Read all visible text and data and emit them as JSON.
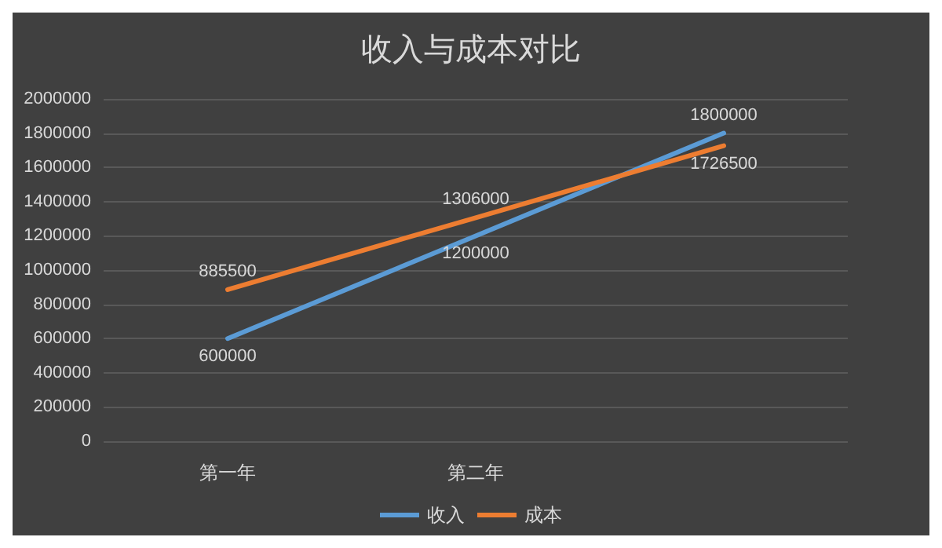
{
  "chart_data": {
    "type": "line",
    "title": "收入与成本对比",
    "categories": [
      "第一年",
      "第二年",
      null
    ],
    "series": [
      {
        "name": "收入",
        "color": "#5b9bd5",
        "values": [
          600000,
          1200000,
          1800000
        ]
      },
      {
        "name": "成本",
        "color": "#ed7d31",
        "values": [
          885500,
          1306000,
          1726500
        ]
      }
    ],
    "ylim": [
      0,
      2000000
    ],
    "yticks": [
      0,
      200000,
      400000,
      600000,
      800000,
      1000000,
      1200000,
      1400000,
      1600000,
      1800000,
      2000000
    ],
    "grid": "y",
    "legend": "bottom",
    "data_labels": true,
    "marker": "none",
    "line_style": "solid"
  }
}
